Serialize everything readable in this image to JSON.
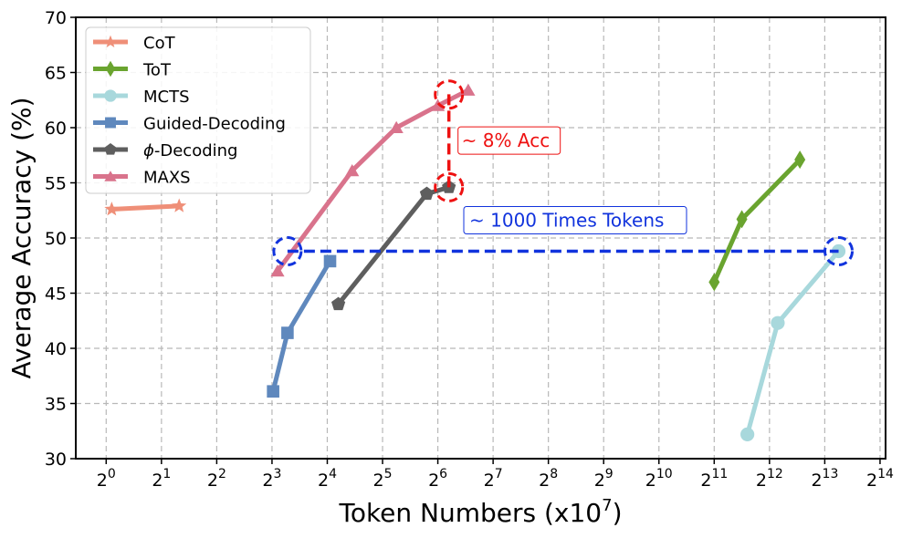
{
  "chart_data": {
    "type": "line",
    "title": "",
    "xlabel": "Token Numbers (x10",
    "xlabel_sup": "7",
    "xlabel_close": ")",
    "ylabel": "Average Accuracy (%)",
    "x_scale": "log2",
    "xlim_log2": [
      -0.55,
      14.1
    ],
    "ylim": [
      30,
      70
    ],
    "x_ticks": [
      {
        "base": "2",
        "exp": "0",
        "log2": 0
      },
      {
        "base": "2",
        "exp": "1",
        "log2": 1
      },
      {
        "base": "2",
        "exp": "2",
        "log2": 2
      },
      {
        "base": "2",
        "exp": "3",
        "log2": 3
      },
      {
        "base": "2",
        "exp": "4",
        "log2": 4
      },
      {
        "base": "2",
        "exp": "5",
        "log2": 5
      },
      {
        "base": "2",
        "exp": "6",
        "log2": 6
      },
      {
        "base": "2",
        "exp": "7",
        "log2": 7
      },
      {
        "base": "2",
        "exp": "8",
        "log2": 8
      },
      {
        "base": "2",
        "exp": "9",
        "log2": 9
      },
      {
        "base": "2",
        "exp": "10",
        "log2": 10
      },
      {
        "base": "2",
        "exp": "11",
        "log2": 11
      },
      {
        "base": "2",
        "exp": "12",
        "log2": 12
      },
      {
        "base": "2",
        "exp": "13",
        "log2": 13
      },
      {
        "base": "2",
        "exp": "14",
        "log2": 14
      }
    ],
    "y_ticks": [
      30,
      35,
      40,
      45,
      50,
      55,
      60,
      65,
      70
    ],
    "grid": true,
    "legend_position": "top-left",
    "series": [
      {
        "name": "CoT",
        "color": "#ef8f78",
        "marker": "star",
        "points": [
          [
            0.1,
            52.6
          ],
          [
            1.32,
            52.9
          ]
        ]
      },
      {
        "name": "ToT",
        "color": "#6aa42f",
        "marker": "diamond",
        "points": [
          [
            11.0,
            46.0
          ],
          [
            11.5,
            51.7
          ],
          [
            12.55,
            57.1
          ]
        ]
      },
      {
        "name": "MCTS",
        "color": "#a8d8dc",
        "marker": "circle",
        "points": [
          [
            11.6,
            32.2
          ],
          [
            12.15,
            42.3
          ],
          [
            13.25,
            48.8
          ]
        ]
      },
      {
        "name": "Guided-Decoding",
        "color": "#5f88bd",
        "marker": "square",
        "points": [
          [
            3.02,
            36.1
          ],
          [
            3.28,
            41.4
          ],
          [
            4.05,
            47.9
          ]
        ]
      },
      {
        "name": "-Decoding",
        "name_prefix": "ϕ",
        "color": "#5e5e5e",
        "marker": "pentagon",
        "points": [
          [
            4.2,
            44.0
          ],
          [
            5.8,
            54.0
          ],
          [
            6.2,
            54.6
          ]
        ]
      },
      {
        "name": "MAXS",
        "color": "#d9738c",
        "marker": "triangle",
        "points": [
          [
            3.1,
            47.0
          ],
          [
            4.45,
            56.1
          ],
          [
            5.25,
            60.0
          ],
          [
            6.0,
            62.0
          ],
          [
            6.55,
            63.4
          ]
        ]
      }
    ],
    "annotations": [
      {
        "text": "~ 8% Acc",
        "color": "#ee1111",
        "type": "vertical-gap",
        "from": [
          6.2,
          54.6
        ],
        "to": [
          6.2,
          63.4
        ],
        "circle_at": [
          [
            6.2,
            63.0
          ],
          [
            6.2,
            54.6
          ]
        ]
      },
      {
        "text": "~ 1000 Times Tokens",
        "color": "#1133dd",
        "type": "horizontal-gap",
        "from": [
          3.28,
          48.8
        ],
        "to": [
          13.25,
          48.8
        ],
        "circle_at": [
          [
            3.28,
            48.8
          ],
          [
            13.25,
            48.8
          ]
        ]
      }
    ]
  }
}
